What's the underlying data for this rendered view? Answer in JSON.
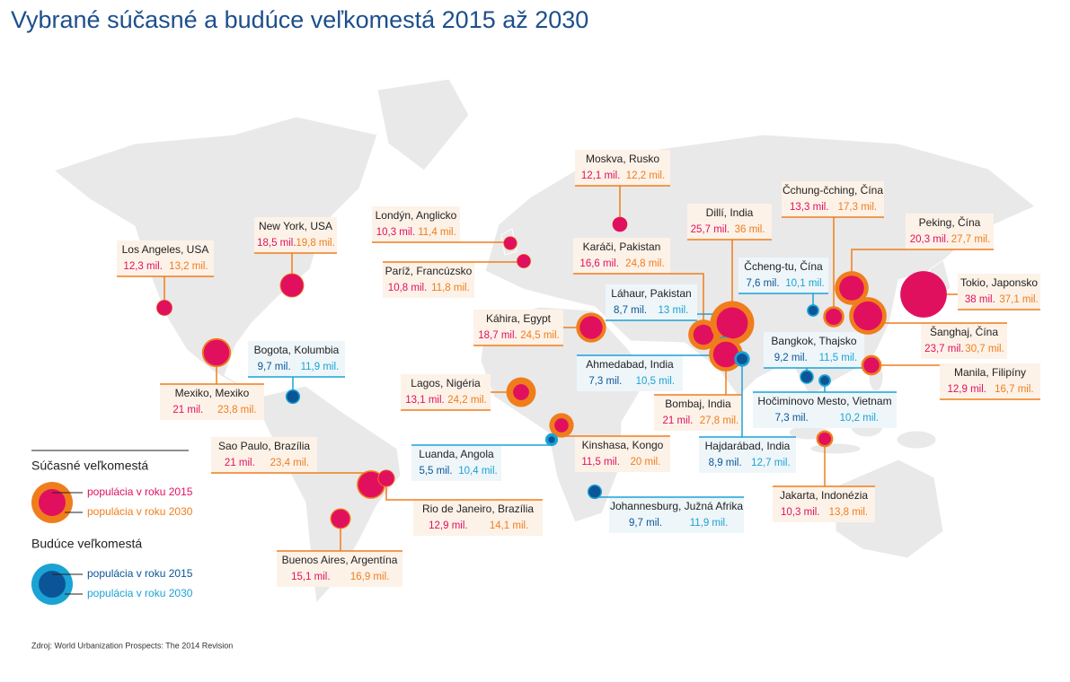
{
  "title": "Vybrané súčasné a budúce veľkomestá 2015 až 2030",
  "legend": {
    "current": {
      "heading": "Súčasné veľkomestá",
      "label_2015": "populácia v roku 2015",
      "label_2030": "populácia v roku 2030",
      "color_2015": "#e1105f",
      "color_2030": "#f07d1b",
      "box_color": "#fdf2e8"
    },
    "future": {
      "heading": "Budúce veľkomestá",
      "label_2015": "populácia v roku 2015",
      "label_2030": "populácia v roku 2030",
      "color_2015": "#0b5597",
      "color_2030": "#1aa3d4",
      "box_color": "#eef6fa"
    }
  },
  "cities": [
    {
      "name": "Los Angeles, USA",
      "group": "current",
      "pop_2015": 12.3,
      "pop_2030": 13.2,
      "label_2015": "12,3 mil.",
      "label_2030": "13,2 mil."
    },
    {
      "name": "New York, USA",
      "group": "current",
      "pop_2015": 18.5,
      "pop_2030": 19.8,
      "label_2015": "18,5 mil.",
      "label_2030": "19,8 mil."
    },
    {
      "name": "Mexiko, Mexiko",
      "group": "current",
      "pop_2015": 21,
      "pop_2030": 23.8,
      "label_2015": "21 mil.",
      "label_2030": "23,8 mil."
    },
    {
      "name": "Bogota, Kolumbia",
      "group": "future",
      "pop_2015": 9.7,
      "pop_2030": 11.9,
      "label_2015": "9,7 mil.",
      "label_2030": "11,9 mil."
    },
    {
      "name": "Sao Paulo, Brazília",
      "group": "current",
      "pop_2015": 21,
      "pop_2030": 23.4,
      "label_2015": "21 mil.",
      "label_2030": "23,4 mil."
    },
    {
      "name": "Rio de Janeiro, Brazília",
      "group": "current",
      "pop_2015": 12.9,
      "pop_2030": 14.1,
      "label_2015": "12,9 mil.",
      "label_2030": "14,1 mil."
    },
    {
      "name": "Buenos Aires, Argentína",
      "group": "current",
      "pop_2015": 15.1,
      "pop_2030": 16.9,
      "label_2015": "15,1 mil.",
      "label_2030": "16,9 mil."
    },
    {
      "name": "Londýn, Anglicko",
      "group": "current",
      "pop_2015": 10.3,
      "pop_2030": 11.4,
      "label_2015": "10,3 mil.",
      "label_2030": "11,4 mil."
    },
    {
      "name": "Paríž, Francúzsko",
      "group": "current",
      "pop_2015": 10.8,
      "pop_2030": 11.8,
      "label_2015": "10,8 mil.",
      "label_2030": "11,8 mil."
    },
    {
      "name": "Moskva, Rusko",
      "group": "current",
      "pop_2015": 12.1,
      "pop_2030": 12.2,
      "label_2015": "12,1 mil.",
      "label_2030": "12,2 mil."
    },
    {
      "name": "Káhira, Egypt",
      "group": "current",
      "pop_2015": 18.7,
      "pop_2030": 24.5,
      "label_2015": "18,7 mil.",
      "label_2030": "24,5 mil."
    },
    {
      "name": "Lagos, Nigéria",
      "group": "current",
      "pop_2015": 13.1,
      "pop_2030": 24.2,
      "label_2015": "13,1 mil.",
      "label_2030": "24,2 mil."
    },
    {
      "name": "Kinshasa, Kongo",
      "group": "current",
      "pop_2015": 11.5,
      "pop_2030": 20,
      "label_2015": "11,5 mil.",
      "label_2030": "20 mil."
    },
    {
      "name": "Luanda, Angola",
      "group": "future",
      "pop_2015": 5.5,
      "pop_2030": 10.4,
      "label_2015": "5,5 mil.",
      "label_2030": "10,4 mil."
    },
    {
      "name": "Johannesburg, Južná Afrika",
      "group": "future",
      "pop_2015": 9.7,
      "pop_2030": 11.9,
      "label_2015": "9,7 mil.",
      "label_2030": "11,9 mil."
    },
    {
      "name": "Karáči, Pakistan",
      "group": "current",
      "pop_2015": 16.6,
      "pop_2030": 24.8,
      "label_2015": "16,6 mil.",
      "label_2030": "24,8 mil."
    },
    {
      "name": "Láhaur, Pakistan",
      "group": "future",
      "pop_2015": 8.7,
      "pop_2030": 13,
      "label_2015": "8,7 mil.",
      "label_2030": "13 mil."
    },
    {
      "name": "Dillí, India",
      "group": "current",
      "pop_2015": 25.7,
      "pop_2030": 36,
      "label_2015": "25,7 mil.",
      "label_2030": "36 mil."
    },
    {
      "name": "Ahmedabad, India",
      "group": "future",
      "pop_2015": 7.3,
      "pop_2030": 10.5,
      "label_2015": "7,3 mil.",
      "label_2030": "10,5 mil."
    },
    {
      "name": "Bombaj, India",
      "group": "current",
      "pop_2015": 21,
      "pop_2030": 27.8,
      "label_2015": "21 mil.",
      "label_2030": "27,8 mil."
    },
    {
      "name": "Hajdarábad, India",
      "group": "future",
      "pop_2015": 8.9,
      "pop_2030": 12.7,
      "label_2015": "8,9 mil.",
      "label_2030": "12,7 mil."
    },
    {
      "name": "Čcheng-tu, Čína",
      "group": "future",
      "pop_2015": 7.6,
      "pop_2030": 10.1,
      "label_2015": "7,6 mil.",
      "label_2030": "10,1 mil."
    },
    {
      "name": "Čchung-čching, Čína",
      "group": "current",
      "pop_2015": 13.3,
      "pop_2030": 17.3,
      "label_2015": "13,3 mil.",
      "label_2030": "17,3 mil."
    },
    {
      "name": "Peking, Čína",
      "group": "current",
      "pop_2015": 20.3,
      "pop_2030": 27.7,
      "label_2015": "20,3 mil.",
      "label_2030": "27,7 mil."
    },
    {
      "name": "Tokio, Japonsko",
      "group": "current",
      "pop_2015": 38,
      "pop_2030": 37.1,
      "label_2015": "38 mil.",
      "label_2030": "37,1 mil."
    },
    {
      "name": "Šanghaj, Čína",
      "group": "current",
      "pop_2015": 23.7,
      "pop_2030": 30.7,
      "label_2015": "23,7 mil.",
      "label_2030": "30,7 mil."
    },
    {
      "name": "Bangkok, Thajsko",
      "group": "future",
      "pop_2015": 9.2,
      "pop_2030": 11.5,
      "label_2015": "9,2 mil.",
      "label_2030": "11,5 mil."
    },
    {
      "name": "Hočiminovo Mesto, Vietnam",
      "group": "future",
      "pop_2015": 7.3,
      "pop_2030": 10.2,
      "label_2015": "7,3 mil.",
      "label_2030": "10,2 mil."
    },
    {
      "name": "Manila, Filipíny",
      "group": "current",
      "pop_2015": 12.9,
      "pop_2030": 16.7,
      "label_2015": "12,9 mil.",
      "label_2030": "16,7 mil."
    },
    {
      "name": "Jakarta, Indonézia",
      "group": "current",
      "pop_2015": 10.3,
      "pop_2030": 13.8,
      "label_2015": "10,3 mil.",
      "label_2030": "13,8 mil."
    }
  ],
  "source": "Zdroj: World Urbanization Prospects: The 2014 Revision"
}
